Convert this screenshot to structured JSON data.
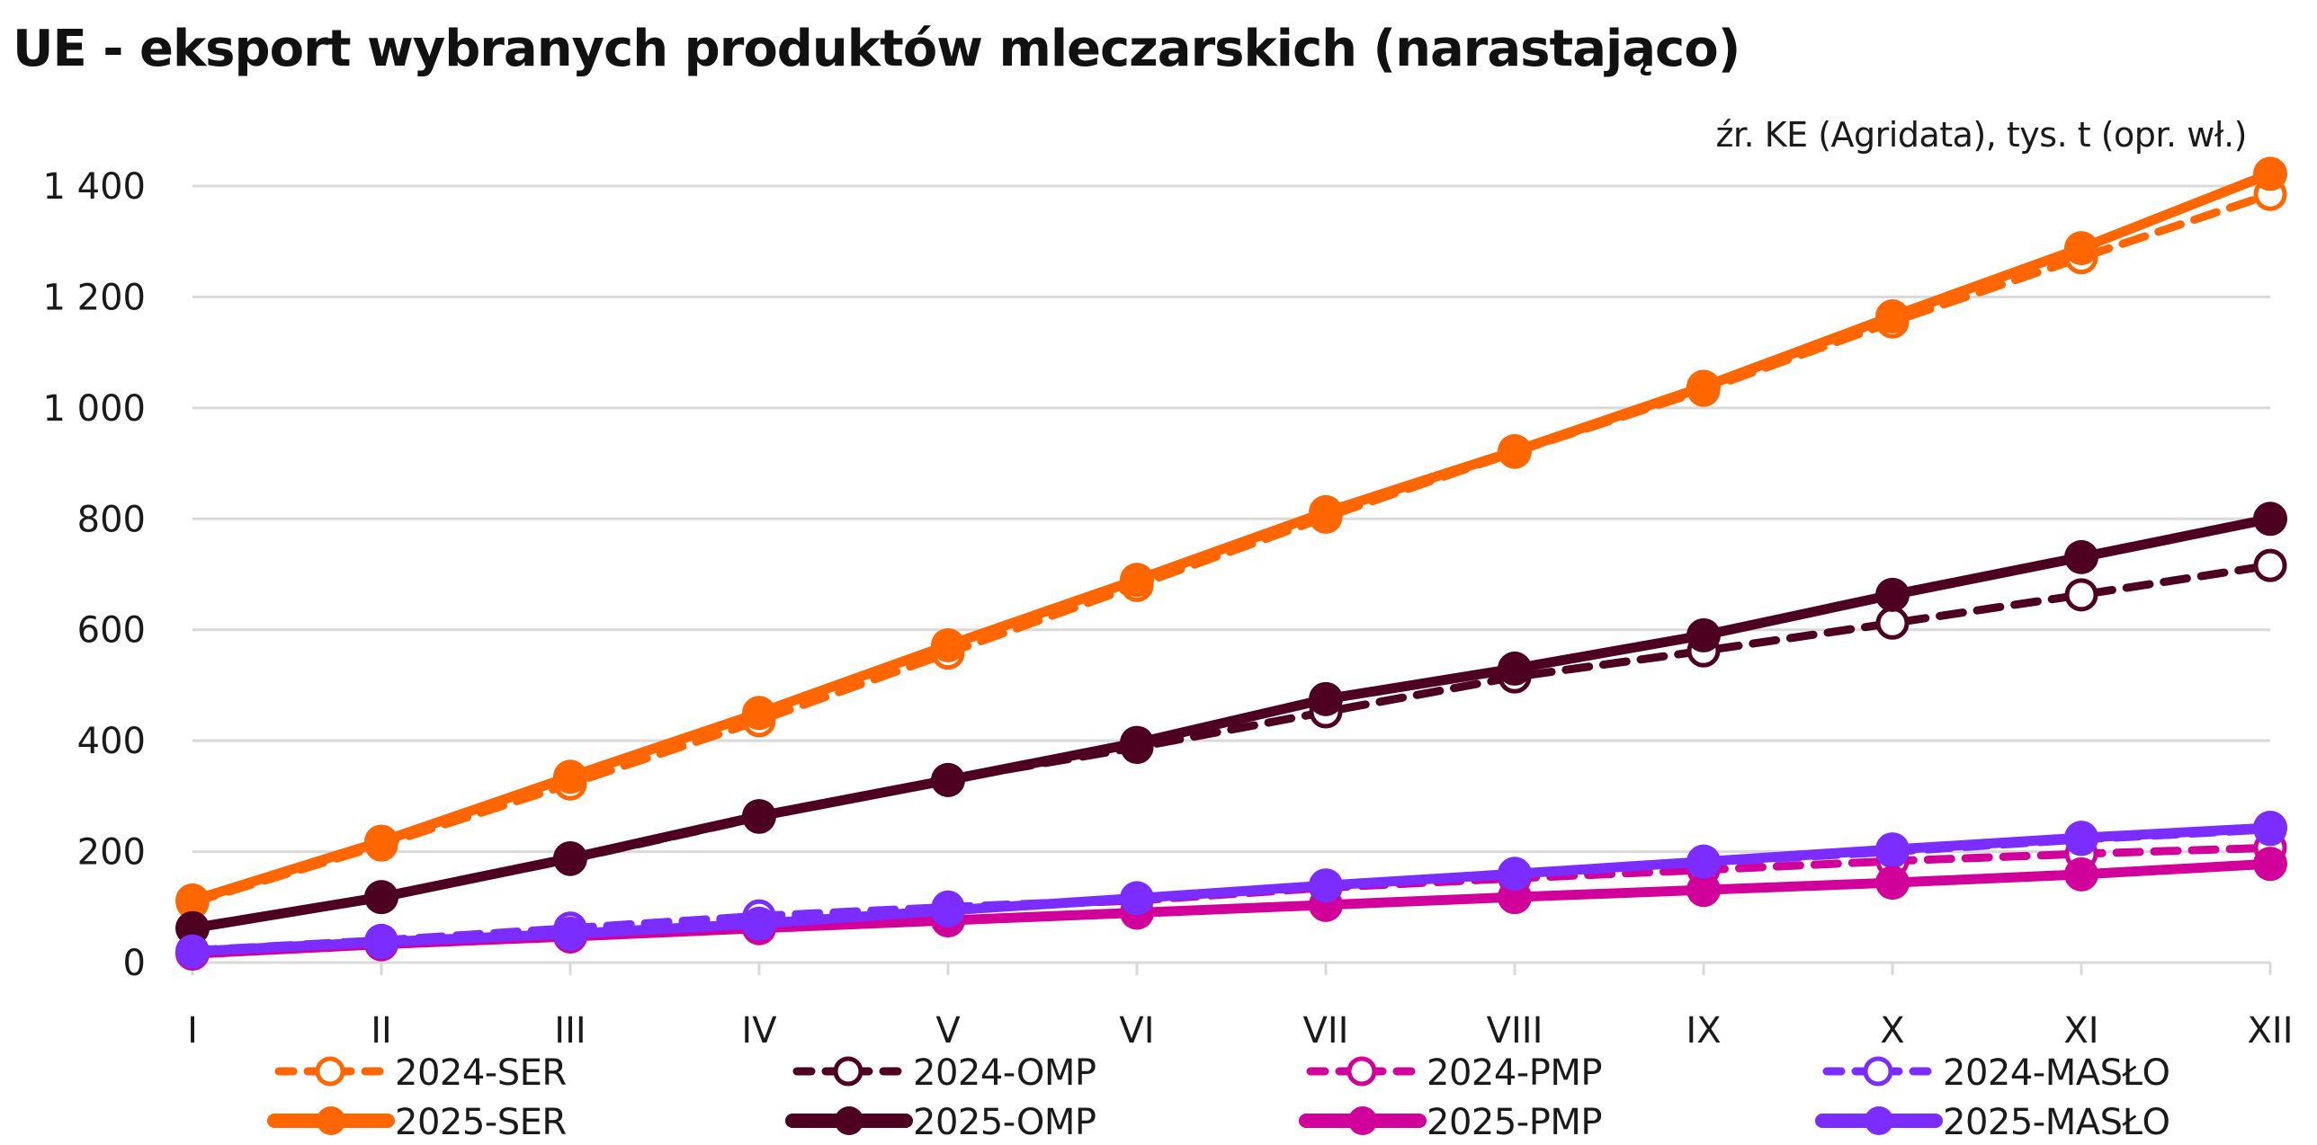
{
  "chart_data": {
    "type": "line",
    "title": "UE - eksport wybranych produktów mleczarskich (narastająco)",
    "source": "źr. KE (Agridata), tys. t (opr. wł.)",
    "xlabel": "",
    "ylabel": "",
    "ylim": [
      0,
      1400
    ],
    "yticks": [
      0,
      200,
      400,
      600,
      800,
      1000,
      1200,
      1400
    ],
    "ytick_labels": [
      "0",
      "200",
      "400",
      "600",
      "800",
      "1 000",
      "1 200",
      "1 400"
    ],
    "grid": true,
    "legend_position": "bottom",
    "categories": [
      "I",
      "II",
      "III",
      "IV",
      "V",
      "VI",
      "VII",
      "VIII",
      "IX",
      "X",
      "XI",
      "XII"
    ],
    "series": [
      {
        "name": "2024-SER",
        "color": "#FF6600",
        "style": "dashed",
        "marker": "open",
        "values": [
          108,
          212,
          322,
          436,
          558,
          680,
          803,
          920,
          1032,
          1155,
          1271,
          1385
        ]
      },
      {
        "name": "2024-OMP",
        "color": "#4D0020",
        "style": "dashed",
        "marker": "open",
        "values": [
          62,
          118,
          186,
          262,
          330,
          388,
          452,
          515,
          562,
          612,
          663,
          716
        ]
      },
      {
        "name": "2024-PMP",
        "color": "#D1009B",
        "style": "dashed",
        "marker": "open",
        "values": [
          20,
          40,
          60,
          80,
          98,
          112,
          135,
          152,
          167,
          183,
          196,
          207
        ]
      },
      {
        "name": "2024-MASŁO",
        "color": "#7B2CFF",
        "style": "dashed",
        "marker": "open",
        "values": [
          22,
          40,
          62,
          84,
          100,
          114,
          138,
          158,
          180,
          200,
          222,
          240
        ]
      },
      {
        "name": "2025-SER",
        "color": "#FF6600",
        "style": "solid",
        "marker": "filled",
        "values": [
          112,
          218,
          335,
          450,
          572,
          690,
          812,
          922,
          1038,
          1165,
          1288,
          1422
        ]
      },
      {
        "name": "2025-OMP",
        "color": "#4D0020",
        "style": "solid",
        "marker": "filled",
        "values": [
          62,
          118,
          188,
          264,
          329,
          396,
          475,
          530,
          590,
          663,
          731,
          800
        ]
      },
      {
        "name": "2025-PMP",
        "color": "#D1009B",
        "style": "solid",
        "marker": "filled",
        "values": [
          16,
          33,
          47,
          62,
          76,
          90,
          104,
          118,
          131,
          144,
          159,
          178
        ]
      },
      {
        "name": "2025-MASŁO",
        "color": "#7B2CFF",
        "style": "solid",
        "marker": "filled",
        "values": [
          20,
          37,
          52,
          70,
          94,
          116,
          139,
          160,
          182,
          204,
          225,
          243
        ]
      }
    ],
    "legend": [
      {
        "name": "2024-SER"
      },
      {
        "name": "2024-OMP"
      },
      {
        "name": "2024-PMP"
      },
      {
        "name": "2024-MASŁO"
      },
      {
        "name": "2025-SER"
      },
      {
        "name": "2025-OMP"
      },
      {
        "name": "2025-PMP"
      },
      {
        "name": "2025-MASŁO"
      }
    ]
  }
}
